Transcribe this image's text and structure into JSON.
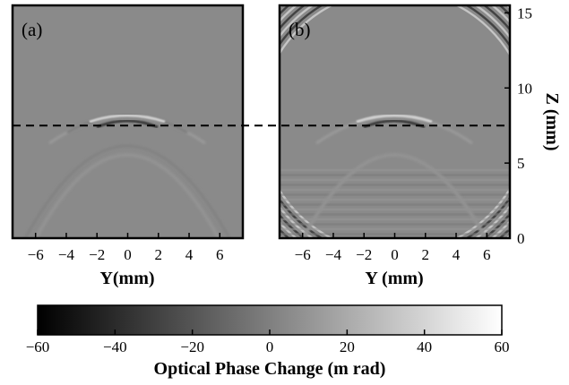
{
  "chart_data": [
    {
      "type": "heatmap",
      "panel_label": "(a)",
      "xlabel": "Y(mm)",
      "ylabel": "",
      "x_ticks": [
        "−6",
        "−4",
        "−2",
        "0",
        "2",
        "4",
        "6"
      ],
      "x_tick_values": [
        -6,
        -4,
        -2,
        0,
        2,
        4,
        6
      ],
      "xlim": [
        -7.5,
        7.5
      ],
      "ylim": [
        0,
        15.5
      ],
      "reference_line_z": 7.5
    },
    {
      "type": "heatmap",
      "panel_label": "(b)",
      "xlabel": "Y (mm)",
      "ylabel": "Z (mm)",
      "x_ticks": [
        "−6",
        "−4",
        "−2",
        "0",
        "2",
        "4",
        "6"
      ],
      "x_tick_values": [
        -6,
        -4,
        -2,
        0,
        2,
        4,
        6
      ],
      "y_ticks": [
        "0",
        "5",
        "10",
        "15"
      ],
      "y_tick_values": [
        0,
        5,
        10,
        15
      ],
      "xlim": [
        -7.5,
        7.5
      ],
      "ylim": [
        0,
        15.5
      ],
      "reference_line_z": 7.5
    }
  ],
  "colorbar": {
    "label": "Optical Phase Change (m rad)",
    "ticks": [
      "−60",
      "−40",
      "−20",
      "0",
      "20",
      "40",
      "60"
    ],
    "tick_values": [
      -60,
      -40,
      -20,
      0,
      20,
      40,
      60
    ],
    "range": [
      -60,
      60
    ],
    "color_low": "#000000",
    "color_high": "#ffffff"
  }
}
